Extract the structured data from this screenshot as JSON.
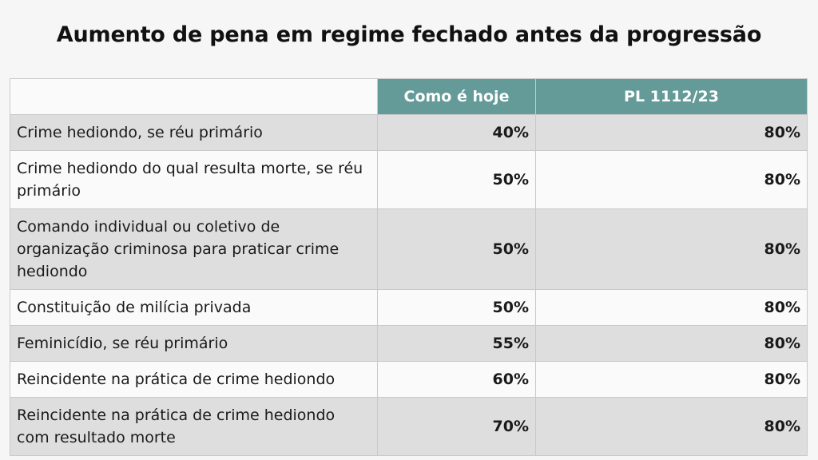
{
  "chart_data": {
    "type": "table",
    "title": "Aumento de pena em regime fechado antes da progressão",
    "columns": [
      "",
      "Como é hoje",
      "PL 1112/23"
    ],
    "rows": [
      {
        "label": "Crime hediondo, se réu primário",
        "hoje": "40%",
        "pl": "80%"
      },
      {
        "label": "Crime hediondo do qual resulta morte, se réu primário",
        "hoje": "50%",
        "pl": "80%"
      },
      {
        "label": "Comando individual ou coletivo de organização criminosa para praticar crime hediondo",
        "hoje": "50%",
        "pl": "80%"
      },
      {
        "label": "Constituição de milícia privada",
        "hoje": "50%",
        "pl": "80%"
      },
      {
        "label": "Feminicídio, se réu primário",
        "hoje": "55%",
        "pl": "80%"
      },
      {
        "label": "Reincidente na prática de crime hediondo",
        "hoje": "60%",
        "pl": "80%"
      },
      {
        "label": "Reincidente na prática de crime hediondo com resultado morte",
        "hoje": "70%",
        "pl": "80%"
      }
    ]
  },
  "colors": {
    "header_bg": "#649b98",
    "row_shade": "#dedede",
    "row_light": "#fafafa"
  }
}
